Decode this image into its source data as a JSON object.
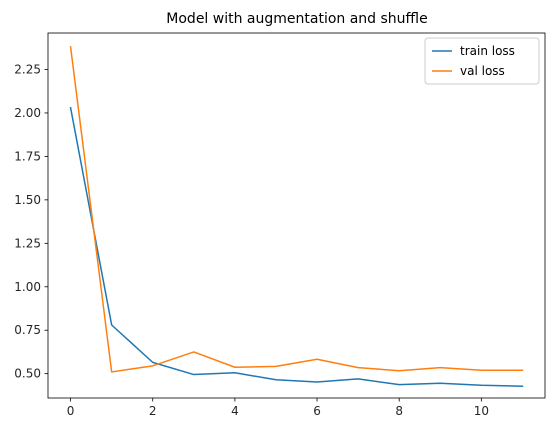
{
  "chart_data": {
    "type": "line",
    "title": "Model with augmentation and shuffle",
    "xlabel": "",
    "ylabel": "",
    "x": [
      0,
      1,
      2,
      3,
      4,
      5,
      6,
      7,
      8,
      9,
      10,
      11
    ],
    "xlim": [
      -0.55,
      11.55
    ],
    "ylim": [
      0.36,
      2.46
    ],
    "xticks": [
      0,
      2,
      4,
      6,
      8,
      10
    ],
    "yticks": [
      0.5,
      0.75,
      1.0,
      1.25,
      1.5,
      1.75,
      2.0,
      2.25
    ],
    "ytick_labels": [
      "0.50",
      "0.75",
      "1.00",
      "1.25",
      "1.50",
      "1.75",
      "2.00",
      "2.25"
    ],
    "grid": false,
    "legend_position": "top-right",
    "series": [
      {
        "name": "train loss",
        "color": "#1f77b4",
        "values": [
          2.03,
          0.78,
          0.565,
          0.495,
          0.505,
          0.465,
          0.452,
          0.47,
          0.437,
          0.445,
          0.433,
          0.428
        ]
      },
      {
        "name": "val loss",
        "color": "#ff7f0e",
        "values": [
          2.38,
          0.51,
          0.545,
          0.625,
          0.537,
          0.542,
          0.583,
          0.535,
          0.517,
          0.535,
          0.52,
          0.52
        ]
      }
    ]
  }
}
